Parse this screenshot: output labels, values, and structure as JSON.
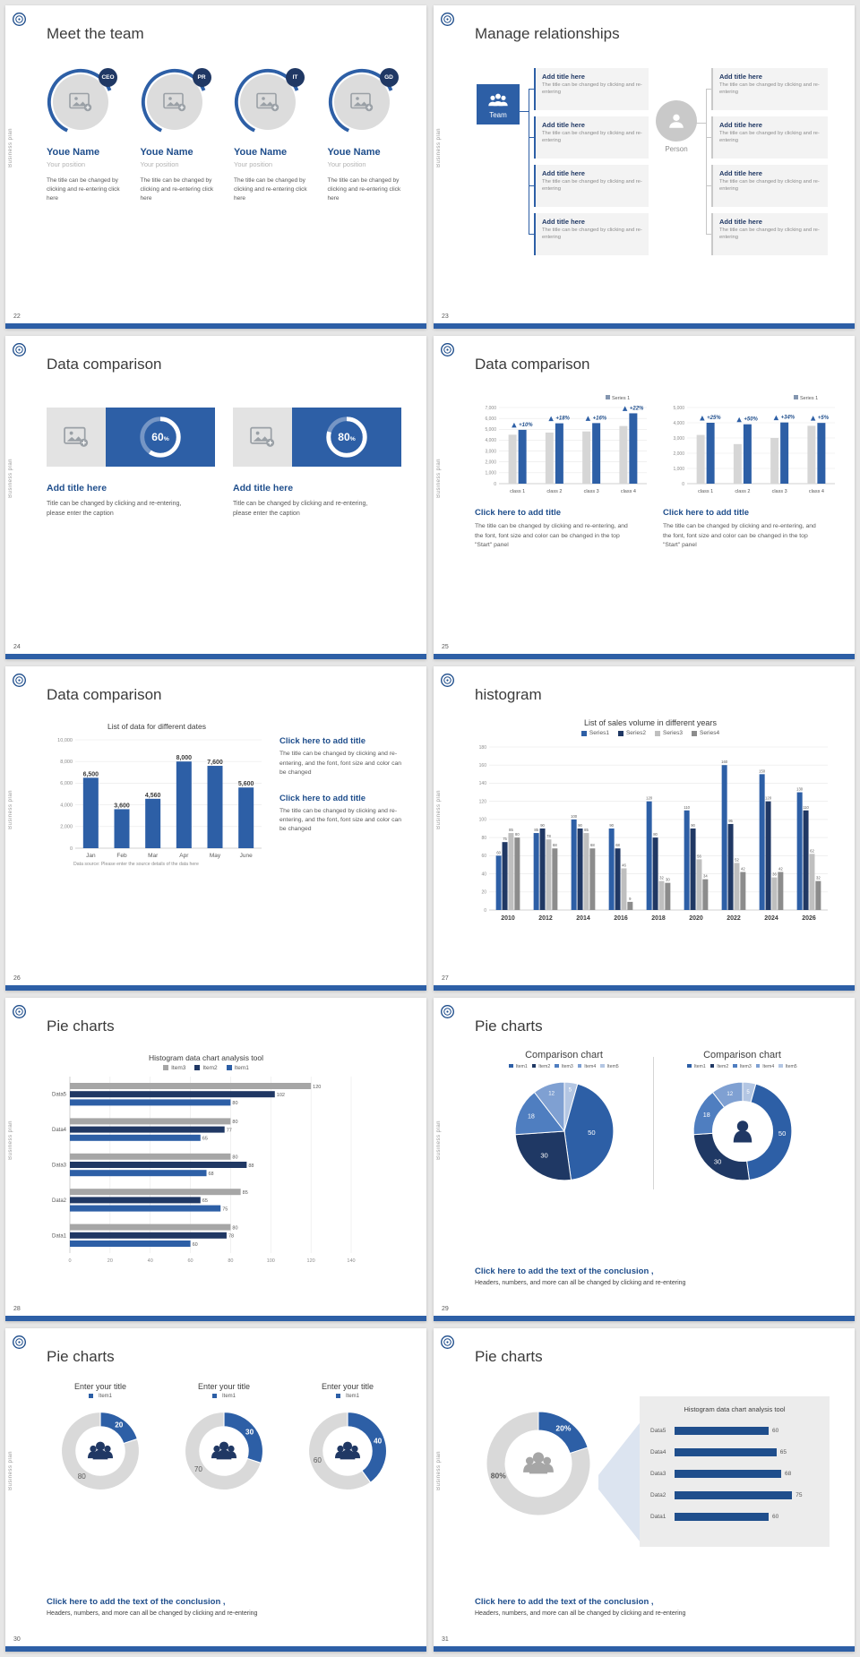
{
  "palette": {
    "blue": "#2d5fa6",
    "navy": "#203864",
    "grey": "#a6a6a6",
    "light_grey": "#d9d9d9",
    "dark_grey": "#8c8c8c",
    "accent_text": "#1f4e8c",
    "page_bg": "#e6e6e6",
    "pie": [
      "#2d5fa6",
      "#1f3864",
      "#4f7ec0",
      "#7fa0d2",
      "#b3c6e3"
    ]
  },
  "common": {
    "sidebar_text": "Business plan"
  },
  "slides": {
    "s22": {
      "number": "22",
      "title": "Meet the team",
      "members": [
        {
          "badge": "CEO",
          "name": "Youe Name",
          "position": "Your position",
          "desc": "The title can be changed by clicking and re-entering click here"
        },
        {
          "badge": "PR",
          "name": "Youe Name",
          "position": "Your position",
          "desc": "The title can be changed by clicking and re-entering click here"
        },
        {
          "badge": "IT",
          "name": "Youe Name",
          "position": "Your position",
          "desc": "The title can be changed by clicking and re-entering click here"
        },
        {
          "badge": "GD",
          "name": "Youe Name",
          "position": "Your position",
          "desc": "The title can be changed by clicking and re-entering click here"
        }
      ]
    },
    "s23": {
      "number": "23",
      "title": "Manage relationships",
      "team_label": "Team",
      "person_label": "Person",
      "boxes_left": [
        {
          "title": "Add title here",
          "text": "The title can be changed by clicking and re-entering"
        },
        {
          "title": "Add title here",
          "text": "The title can be changed by clicking and re-entering"
        },
        {
          "title": "Add title here",
          "text": "The title can be changed by clicking and re-entering"
        },
        {
          "title": "Add title here",
          "text": "The title can be changed by clicking and re-entering"
        }
      ],
      "boxes_right": [
        {
          "title": "Add title here",
          "text": "The title can be changed by clicking and re-entering"
        },
        {
          "title": "Add title here",
          "text": "The title can be changed by clicking and re-entering"
        },
        {
          "title": "Add title here",
          "text": "The title can be changed by clicking and re-entering"
        },
        {
          "title": "Add title here",
          "text": "The title can be changed by clicking and re-entering"
        }
      ]
    },
    "s24": {
      "number": "24",
      "title": "Data comparison",
      "items": [
        {
          "percent": "60",
          "title": "Add title here",
          "caption": "Title can be changed by clicking and re-entering, please enter the caption"
        },
        {
          "percent": "80",
          "title": "Add title here",
          "caption": "Title can be changed by clicking and re-entering, please enter the caption"
        }
      ]
    },
    "s25": {
      "number": "25",
      "title": "Data comparison",
      "charts": [
        {
          "type": "bar",
          "legend": "Series 1",
          "categories": [
            "class 1",
            "class 2",
            "class 3",
            "class 4"
          ],
          "base": [
            4500,
            4700,
            4800,
            5300
          ],
          "highlight": [
            4950,
            5550,
            5570,
            6470
          ],
          "callouts": [
            "+10%",
            "+18%",
            "+16%",
            "+22%"
          ],
          "ymax": 7000,
          "ystep": 1000
        },
        {
          "type": "bar",
          "legend": "Series 1",
          "categories": [
            "class 1",
            "class 2",
            "class 3",
            "class 4"
          ],
          "base": [
            3200,
            2600,
            3000,
            3800
          ],
          "highlight": [
            4000,
            3900,
            4020,
            3990
          ],
          "callouts": [
            "+25%",
            "+50%",
            "+34%",
            "+5%"
          ],
          "ymax": 5000,
          "ystep": 1000
        }
      ],
      "blocks": [
        {
          "title": "Click here to add title",
          "text": "The title can be changed by clicking and re-entering, and the font, font size and color can be changed in the top \"Start\" panel"
        },
        {
          "title": "Click here to add title",
          "text": "The title can be changed by clicking and re-entering, and the font, font size and color can be changed in the top \"Start\" panel"
        }
      ]
    },
    "s26": {
      "number": "26",
      "title": "Data comparison",
      "chart": {
        "type": "bar",
        "title": "List of data for different dates",
        "categories": [
          "Jan",
          "Feb",
          "Mar",
          "Apr",
          "May",
          "June"
        ],
        "values": [
          6500,
          3600,
          4560,
          8000,
          7600,
          5600
        ],
        "value_labels": [
          "6,500",
          "3,600",
          "4,560",
          "8,000",
          "7,600",
          "5,600"
        ],
        "ymax": 10000,
        "ystep": 2000,
        "source": "Data source: Please enter the source details of the data here"
      },
      "blocks": [
        {
          "title": "Click here to add title",
          "text": "The title can be changed by clicking and re-entering, and the font, font size and color can be changed"
        },
        {
          "title": "Click here to add title",
          "text": "The title can be changed by clicking and re-entering, and the font, font size and color can be changed"
        }
      ]
    },
    "s27": {
      "number": "27",
      "title": "histogram",
      "chart": {
        "type": "bar",
        "title": "List of sales volume in different years",
        "categories": [
          "2010",
          "2012",
          "2014",
          "2016",
          "2018",
          "2020",
          "2022",
          "2024",
          "2026"
        ],
        "series": [
          {
            "name": "Series1",
            "values": [
              60,
              85,
              100,
              90,
              120,
              110,
              160,
              150,
              130
            ]
          },
          {
            "name": "Series2",
            "values": [
              75,
              90,
              90,
              68,
              80,
              90,
              95,
              120,
              110
            ]
          },
          {
            "name": "Series3",
            "values": [
              85,
              78,
              85,
              46,
              32,
              56,
              52,
              36,
              62
            ]
          },
          {
            "name": "Series4",
            "values": [
              80,
              68,
              68,
              9,
              30,
              34,
              42,
              42,
              32
            ]
          }
        ],
        "ymax": 180,
        "ystep": 20
      }
    },
    "s28": {
      "number": "28",
      "title": "Pie charts",
      "chart": {
        "type": "hbar",
        "title": "Histogram data chart analysis tool",
        "legend": [
          "Item3",
          "Item2",
          "Item1"
        ],
        "categories": [
          "Data5",
          "Data4",
          "Data3",
          "Data2",
          "Data1"
        ],
        "series": [
          {
            "name": "Item3",
            "values": [
              120,
              80,
              80,
              85,
              80
            ]
          },
          {
            "name": "Item2",
            "values": [
              102,
              77,
              88,
              65,
              78
            ]
          },
          {
            "name": "Item1",
            "values": [
              80,
              65,
              68,
              75,
              60
            ]
          }
        ],
        "xmax": 140,
        "xstep": 20
      }
    },
    "s29": {
      "number": "29",
      "title": "Pie charts",
      "panels": [
        {
          "kind": "pie",
          "title": "Comparison chart",
          "legend": [
            "Item1",
            "Item2",
            "Item3",
            "Item4",
            "Item5"
          ],
          "values": [
            50,
            30,
            18,
            12,
            5
          ]
        },
        {
          "kind": "donut",
          "title": "Comparison chart",
          "legend": [
            "Item1",
            "Item2",
            "Item3",
            "Item4",
            "Item5"
          ],
          "values": [
            50,
            30,
            18,
            12,
            5
          ]
        }
      ],
      "conclusion": {
        "bold": "Click here to add the text of the conclusion ,",
        "text": "Headers, numbers, and more can all be changed by clicking and re-entering"
      }
    },
    "s30": {
      "number": "30",
      "title": "Pie charts",
      "donuts": [
        {
          "title": "Enter your title",
          "legend": "Item1",
          "value": 20,
          "rest": 80
        },
        {
          "title": "Enter your title",
          "legend": "Item1",
          "value": 30,
          "rest": 70
        },
        {
          "title": "Enter your title",
          "legend": "Item1",
          "value": 40,
          "rest": 60
        }
      ],
      "conclusion": {
        "bold": "Click here to add the text of the conclusion ,",
        "text": "Headers, numbers, and more can all be changed by clicking and re-entering"
      }
    },
    "s31": {
      "number": "31",
      "title": "Pie charts",
      "donut": {
        "value": 20,
        "rest": 80,
        "value_label": "20%",
        "rest_label": "80%"
      },
      "panel": {
        "title": "Histogram data chart analysis tool",
        "max": 80,
        "rows": [
          {
            "label": "Data5",
            "value": 60
          },
          {
            "label": "Data4",
            "value": 65
          },
          {
            "label": "Data3",
            "value": 68
          },
          {
            "label": "Data2",
            "value": 75
          },
          {
            "label": "Data1",
            "value": 60
          }
        ]
      },
      "conclusion": {
        "bold": "Click here to add the text of the conclusion ,",
        "text": "Headers, numbers, and more can all be changed by clicking and re-entering"
      }
    }
  }
}
